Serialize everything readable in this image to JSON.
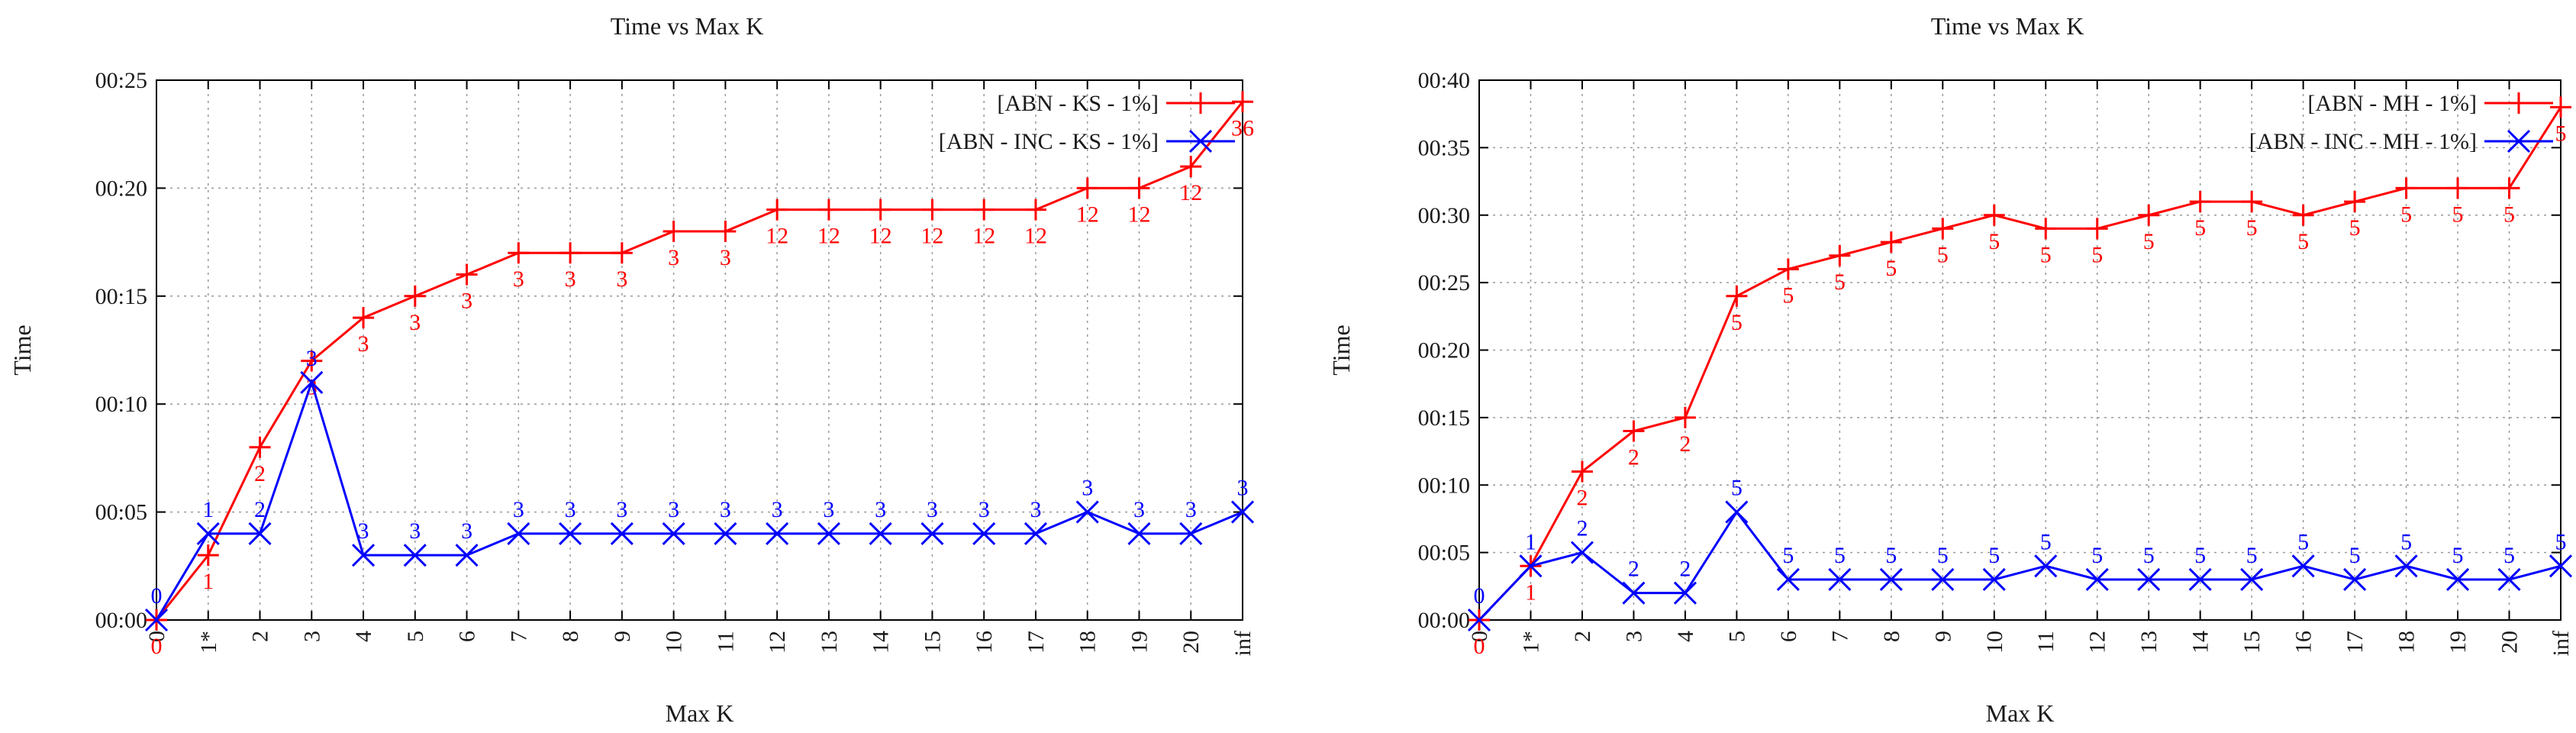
{
  "colors": {
    "red": "#ff0000",
    "blue": "#0000ff"
  },
  "chart_data": [
    {
      "type": "line",
      "title": "Time vs Max K",
      "xlabel": "Max K",
      "ylabel": "Time",
      "categories": [
        "0",
        "1*",
        "2",
        "3",
        "4",
        "5",
        "6",
        "7",
        "8",
        "9",
        "10",
        "11",
        "12",
        "13",
        "14",
        "15",
        "16",
        "17",
        "18",
        "19",
        "20",
        "inf"
      ],
      "ylim": [
        0,
        25
      ],
      "y_ticks": [
        0,
        5,
        10,
        15,
        20,
        25
      ],
      "y_tick_labels": [
        "00:00",
        "00:05",
        "00:10",
        "00:15",
        "00:20",
        "00:25"
      ],
      "legend_position": "top-right",
      "series": [
        {
          "name": "[ABN - KS - 1%]",
          "color": "red",
          "marker": "plus",
          "values": [
            0,
            3,
            8,
            12,
            14,
            15,
            16,
            17,
            17,
            17,
            18,
            18,
            19,
            19,
            19,
            19,
            19,
            19,
            20,
            20,
            21,
            24
          ],
          "labels": [
            "0",
            "1",
            "2",
            "3",
            "3",
            "3",
            "3",
            "3",
            "3",
            "3",
            "3",
            "3",
            "12",
            "12",
            "12",
            "12",
            "12",
            "12",
            "12",
            "12",
            "12",
            "36"
          ]
        },
        {
          "name": "[ABN - INC - KS - 1%]",
          "color": "blue",
          "marker": "cross",
          "values": [
            0,
            4,
            4,
            11,
            3,
            3,
            3,
            4,
            4,
            4,
            4,
            4,
            4,
            4,
            4,
            4,
            4,
            4,
            5,
            4,
            4,
            5
          ],
          "labels": [
            "0",
            "1",
            "2",
            "3",
            "3",
            "3",
            "3",
            "3",
            "3",
            "3",
            "3",
            "3",
            "3",
            "3",
            "3",
            "3",
            "3",
            "3",
            "3",
            "3",
            "3",
            "3"
          ]
        }
      ]
    },
    {
      "type": "line",
      "title": "Time vs Max K",
      "xlabel": "Max K",
      "ylabel": "Time",
      "categories": [
        "0",
        "1*",
        "2",
        "3",
        "4",
        "5",
        "6",
        "7",
        "8",
        "9",
        "10",
        "11",
        "12",
        "13",
        "14",
        "15",
        "16",
        "17",
        "18",
        "19",
        "20",
        "inf"
      ],
      "ylim": [
        0,
        40
      ],
      "y_ticks": [
        0,
        5,
        10,
        15,
        20,
        25,
        30,
        35,
        40
      ],
      "y_tick_labels": [
        "00:00",
        "00:05",
        "00:10",
        "00:15",
        "00:20",
        "00:25",
        "00:30",
        "00:35",
        "00:40"
      ],
      "legend_position": "top-right",
      "series": [
        {
          "name": "[ABN - MH - 1%]",
          "color": "red",
          "marker": "plus",
          "values": [
            0,
            4,
            11,
            14,
            15,
            24,
            26,
            27,
            28,
            29,
            30,
            29,
            29,
            30,
            31,
            31,
            30,
            31,
            32,
            32,
            32,
            38
          ],
          "labels": [
            "0",
            "1",
            "2",
            "2",
            "2",
            "5",
            "5",
            "5",
            "5",
            "5",
            "5",
            "5",
            "5",
            "5",
            "5",
            "5",
            "5",
            "5",
            "5",
            "5",
            "5",
            "5"
          ]
        },
        {
          "name": "[ABN - INC - MH - 1%]",
          "color": "blue",
          "marker": "cross",
          "values": [
            0,
            4,
            5,
            2,
            2,
            8,
            3,
            3,
            3,
            3,
            3,
            4,
            3,
            3,
            3,
            3,
            4,
            3,
            4,
            3,
            3,
            4
          ],
          "labels": [
            "0",
            "1",
            "2",
            "2",
            "2",
            "5",
            "5",
            "5",
            "5",
            "5",
            "5",
            "5",
            "5",
            "5",
            "5",
            "5",
            "5",
            "5",
            "5",
            "5",
            "5",
            "5"
          ]
        }
      ]
    }
  ]
}
